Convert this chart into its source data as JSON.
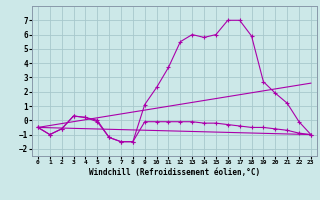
{
  "xlabel": "Windchill (Refroidissement éolien,°C)",
  "bg_color": "#cce8e8",
  "grid_color": "#a8c8cc",
  "line_color": "#aa00aa",
  "xlim": [
    -0.5,
    23.5
  ],
  "ylim": [
    -2.5,
    8.0
  ],
  "yticks": [
    -2,
    -1,
    0,
    1,
    2,
    3,
    4,
    5,
    6,
    7
  ],
  "xticks": [
    0,
    1,
    2,
    3,
    4,
    5,
    6,
    7,
    8,
    9,
    10,
    11,
    12,
    13,
    14,
    15,
    16,
    17,
    18,
    19,
    20,
    21,
    22,
    23
  ],
  "series1_x": [
    0,
    1,
    2,
    3,
    4,
    5,
    6,
    7,
    8,
    9,
    10,
    11,
    12,
    13,
    14,
    15,
    16,
    17,
    18,
    19,
    20,
    21,
    22,
    23
  ],
  "series1_y": [
    -0.5,
    -1.0,
    -0.6,
    0.3,
    0.2,
    0.0,
    -1.2,
    -1.5,
    -1.5,
    1.1,
    2.3,
    3.7,
    5.5,
    6.0,
    5.8,
    6.0,
    7.0,
    7.0,
    5.9,
    2.7,
    1.9,
    1.2,
    -0.1,
    -1.0
  ],
  "series2_x": [
    0,
    1,
    2,
    3,
    4,
    5,
    6,
    7,
    8,
    9,
    10,
    11,
    12,
    13,
    14,
    15,
    16,
    17,
    18,
    19,
    20,
    21,
    22,
    23
  ],
  "series2_y": [
    -0.5,
    -1.0,
    -0.6,
    0.3,
    0.2,
    -0.1,
    -1.2,
    -1.5,
    -1.5,
    -0.1,
    -0.1,
    -0.1,
    -0.1,
    -0.1,
    -0.2,
    -0.2,
    -0.3,
    -0.4,
    -0.5,
    -0.5,
    -0.6,
    -0.7,
    -0.9,
    -1.0
  ],
  "series3_x": [
    0,
    23
  ],
  "series3_y": [
    -0.5,
    2.6
  ],
  "series4_x": [
    0,
    23
  ],
  "series4_y": [
    -0.5,
    -1.0
  ]
}
